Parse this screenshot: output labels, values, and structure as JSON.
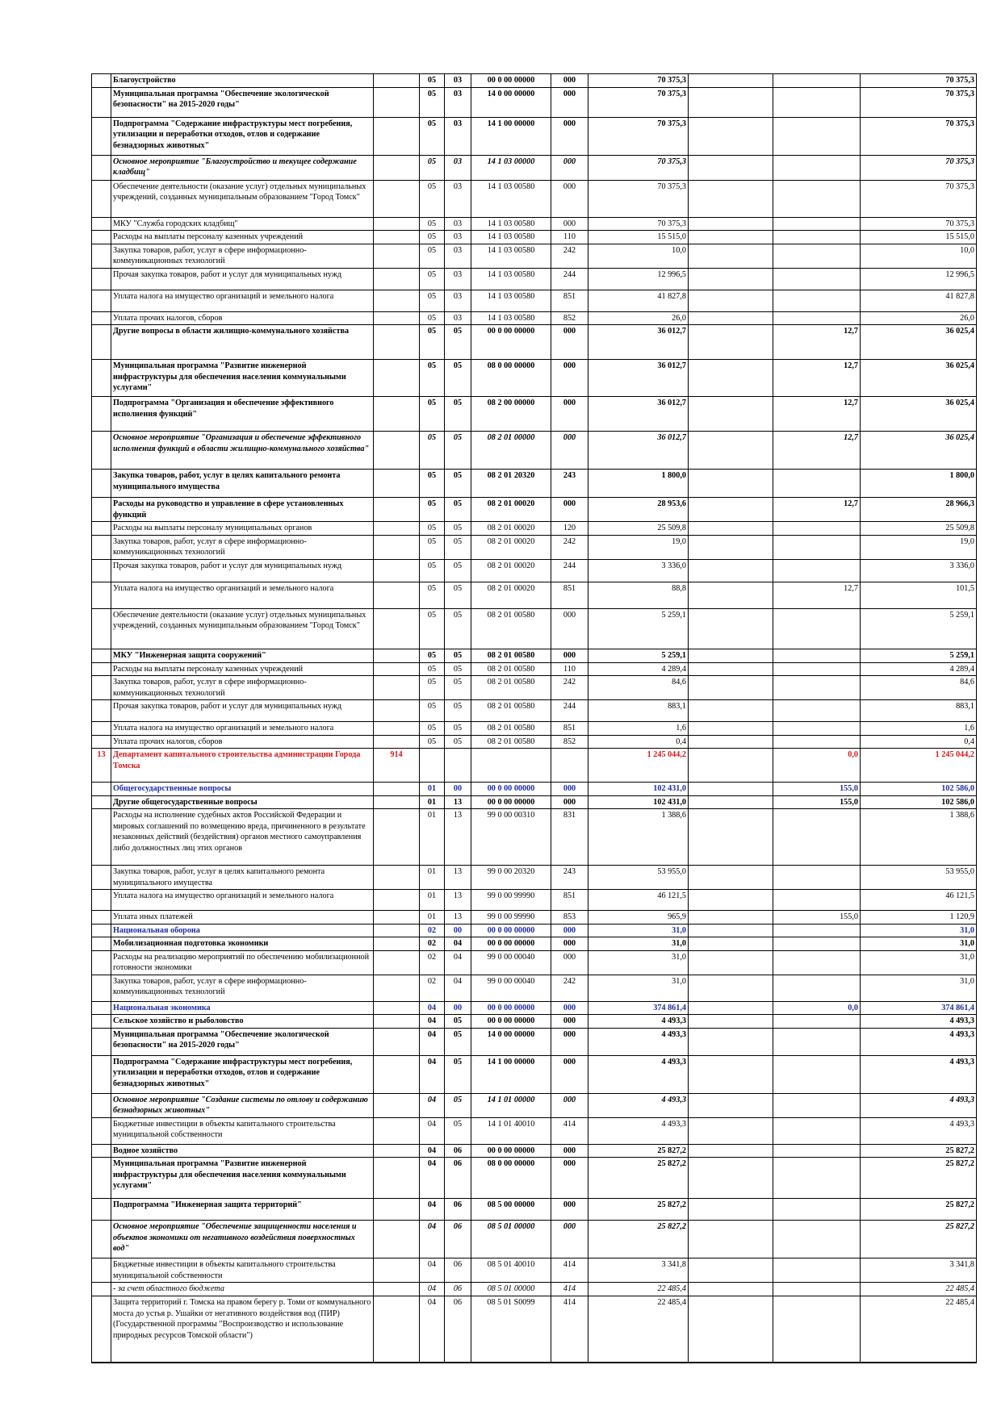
{
  "rows": [
    {
      "k": "bold",
      "n": "",
      "name": "Благоустройство",
      "dept": "",
      "rz": "05",
      "pr": "03",
      "csr": "00 0 00 00000",
      "vr": "000",
      "a": "70 375,3",
      "b": "",
      "c": "",
      "d": "70 375,3",
      "h": 16
    },
    {
      "k": "bold",
      "n": "",
      "name": "Муниципальная программа \"Обеспечение экологической безопасности\" на 2015-2020 годы\"",
      "dept": "",
      "rz": "05",
      "pr": "03",
      "csr": "14 0 00 00000",
      "vr": "000",
      "a": "70 375,3",
      "b": "",
      "c": "",
      "d": "70 375,3",
      "h": 37
    },
    {
      "k": "bold",
      "n": "",
      "name": "Подпрограмма \"Содержание инфраструктуры мест погребения, утилизации и переработки отходов, отлов и содержание безнадзорных животных\"",
      "dept": "",
      "rz": "05",
      "pr": "03",
      "csr": "14 1 00 00000",
      "vr": "000",
      "a": "70 375,3",
      "b": "",
      "c": "",
      "d": "70 375,3",
      "h": 47
    },
    {
      "k": "ital",
      "n": "",
      "name": "Основное мероприятие \"Благоустройство и текущее содержание кладбищ\"",
      "dept": "",
      "rz": "05",
      "pr": "03",
      "csr": "14 1 03 00000",
      "vr": "000",
      "a": "70 375,3",
      "b": "",
      "c": "",
      "d": "70 375,3",
      "h": 31
    },
    {
      "k": "plain",
      "n": "",
      "name": "Обеспечение деятельности (оказание услуг) отдельных муниципальных учреждений, созданных муниципальным образованием \"Город Томск\"",
      "dept": "",
      "rz": "05",
      "pr": "03",
      "csr": "14 1 03 00580",
      "vr": "000",
      "a": "70 375,3",
      "b": "",
      "c": "",
      "d": "70 375,3",
      "h": 46
    },
    {
      "k": "plain",
      "n": "",
      "name": "МКУ \"Служба городских кладбищ\"",
      "dept": "",
      "rz": "05",
      "pr": "03",
      "csr": "14 1 03 00580",
      "vr": "000",
      "a": "70 375,3",
      "b": "",
      "c": "",
      "d": "70 375,3",
      "h": 13
    },
    {
      "k": "sub",
      "n": "",
      "name": "Расходы на выплаты персоналу казенных учреждений",
      "dept": "",
      "rz": "05",
      "pr": "03",
      "csr": "14 1 03 00580",
      "vr": "110",
      "a": "15 515,0",
      "b": "",
      "c": "",
      "d": "15 515,0",
      "h": 13
    },
    {
      "k": "sub",
      "n": "",
      "name": "Закупка товаров, работ, услуг в сфере информационно-коммуникационных технологий",
      "dept": "",
      "rz": "05",
      "pr": "03",
      "csr": "14 1 03 00580",
      "vr": "242",
      "a": "10,0",
      "b": "",
      "c": "",
      "d": "10,0",
      "h": 30
    },
    {
      "k": "sub",
      "n": "",
      "name": "Прочая закупка товаров, работ и услуг для муниципальных нужд",
      "dept": "",
      "rz": "05",
      "pr": "03",
      "csr": "14 1 03 00580",
      "vr": "244",
      "a": "12 996,5",
      "b": "",
      "c": "",
      "d": "12 996,5",
      "h": 27
    },
    {
      "k": "sub",
      "n": "",
      "name": "Уплата налога на имущество организаций и земельного налога",
      "dept": "",
      "rz": "05",
      "pr": "03",
      "csr": "14 1 03 00580",
      "vr": "851",
      "a": "41 827,8",
      "b": "",
      "c": "",
      "d": "41 827,8",
      "h": 27
    },
    {
      "k": "sub",
      "n": "",
      "name": "Уплата прочих налогов, сборов",
      "dept": "",
      "rz": "05",
      "pr": "03",
      "csr": "14 1 03 00580",
      "vr": "852",
      "a": "26,0",
      "b": "",
      "c": "",
      "d": "26,0",
      "h": 13
    },
    {
      "k": "bold",
      "n": "",
      "name": "Другие вопросы в области жилищно-коммунального хозяйства",
      "dept": "",
      "rz": "05",
      "pr": "05",
      "csr": "00 0 00 00000",
      "vr": "000",
      "a": "36 012,7",
      "b": "",
      "c": "12,7",
      "d": "36 025,4",
      "h": 43
    },
    {
      "k": "bold",
      "n": "",
      "name": "Муниципальная программа \"Развитие инженерной инфраструктуры для обеспечения населения коммунальными услугами\"",
      "dept": "",
      "rz": "05",
      "pr": "05",
      "csr": "08 0 00 00000",
      "vr": "000",
      "a": "36 012,7",
      "b": "",
      "c": "12,7",
      "d": "36 025,4",
      "h": 46
    },
    {
      "k": "bold",
      "n": "",
      "name": "Подпрограмма \"Организация и обеспечение эффективного исполнения функций\"",
      "dept": "",
      "rz": "05",
      "pr": "05",
      "csr": "08 2 00 00000",
      "vr": "000",
      "a": "36 012,7",
      "b": "",
      "c": "12,7",
      "d": "36 025,4",
      "h": 43
    },
    {
      "k": "ital",
      "n": "",
      "name": "Основное мероприятие \"Организация и обеспечение эффективного исполнения функций в области жилищно-коммунального хозяйства\"",
      "dept": "",
      "rz": "05",
      "pr": "05",
      "csr": "08 2 01 00000",
      "vr": "000",
      "a": "36 012,7",
      "b": "",
      "c": "12,7",
      "d": "36 025,4",
      "h": 47
    },
    {
      "k": "bold",
      "n": "",
      "name": "Закупка товаров, работ, услуг в целях капитального ремонта муниципального имущества",
      "dept": "",
      "rz": "05",
      "pr": "05",
      "csr": "08 2 01 20320",
      "vr": "243",
      "a": "1 800,0",
      "b": "",
      "c": "",
      "d": "1 800,0",
      "h": 35
    },
    {
      "k": "bold",
      "n": "",
      "name": "Расходы на руководство и управление в сфере установленных функций",
      "dept": "",
      "rz": "05",
      "pr": "05",
      "csr": "08 2 01 00020",
      "vr": "000",
      "a": "28 953,6",
      "b": "",
      "c": "12,7",
      "d": "28 966,3",
      "h": 29
    },
    {
      "k": "sub",
      "n": "",
      "name": "Расходы на выплаты персоналу муниципальных органов",
      "dept": "",
      "rz": "05",
      "pr": "05",
      "csr": "08 2 01 00020",
      "vr": "120",
      "a": "25 509,8",
      "b": "",
      "c": "",
      "d": "25 509,8",
      "h": 12
    },
    {
      "k": "sub",
      "n": "",
      "name": "Закупка товаров, работ, услуг в сфере информационно-коммуникационных технологий",
      "dept": "",
      "rz": "05",
      "pr": "05",
      "csr": "08 2 01 00020",
      "vr": "242",
      "a": "19,0",
      "b": "",
      "c": "",
      "d": "19,0",
      "h": 26
    },
    {
      "k": "sub",
      "n": "",
      "name": "Прочая закупка товаров, работ и услуг для муниципальных нужд",
      "dept": "",
      "rz": "05",
      "pr": "05",
      "csr": "08 2 01 00020",
      "vr": "244",
      "a": "3 336,0",
      "b": "",
      "c": "",
      "d": "3 336,0",
      "h": 28
    },
    {
      "k": "plain",
      "n": "",
      "name": "Уплата налога на имущество организаций и земельного налога",
      "dept": "",
      "rz": "05",
      "pr": "05",
      "csr": "08 2 01 00020",
      "vr": "851",
      "a": "88,8",
      "b": "",
      "c": "12,7",
      "d": "101,5",
      "h": 33
    },
    {
      "k": "plain",
      "n": "",
      "name": "Обеспечение деятельности (оказание услуг) отдельных муниципальных учреждений, созданных муниципальным образованием \"Город Томск\"",
      "dept": "",
      "rz": "05",
      "pr": "05",
      "csr": "08 2 01 00580",
      "vr": "000",
      "a": "5 259,1",
      "b": "",
      "c": "",
      "d": "5 259,1",
      "h": 50
    },
    {
      "k": "bold",
      "n": "",
      "name": "МКУ \"Инженерная защита сооружений\"",
      "dept": "",
      "rz": "05",
      "pr": "05",
      "csr": "08 2 01 00580",
      "vr": "000",
      "a": "5 259,1",
      "b": "",
      "c": "",
      "d": "5 259,1",
      "h": 17
    },
    {
      "k": "sub",
      "n": "",
      "name": "Расходы на выплаты персоналу казенных учреждений",
      "dept": "",
      "rz": "05",
      "pr": "05",
      "csr": "08 2 01 00580",
      "vr": "110",
      "a": "4 289,4",
      "b": "",
      "c": "",
      "d": "4 289,4",
      "h": 12
    },
    {
      "k": "sub",
      "n": "",
      "name": "Закупка товаров, работ, услуг в сфере информационно-коммуникационных технологий",
      "dept": "",
      "rz": "05",
      "pr": "05",
      "csr": "08 2 01 00580",
      "vr": "242",
      "a": "84,6",
      "b": "",
      "c": "",
      "d": "84,6",
      "h": 27
    },
    {
      "k": "sub",
      "n": "",
      "name": "Прочая закупка товаров, работ и услуг для муниципальных нужд",
      "dept": "",
      "rz": "05",
      "pr": "05",
      "csr": "08 2 01 00580",
      "vr": "244",
      "a": "883,1",
      "b": "",
      "c": "",
      "d": "883,1",
      "h": 27
    },
    {
      "k": "plain",
      "n": "",
      "name": "Уплата налога на имущество организаций и земельного налога",
      "dept": "",
      "rz": "05",
      "pr": "05",
      "csr": "08 2 01 00580",
      "vr": "851",
      "a": "1,6",
      "b": "",
      "c": "",
      "d": "1,6",
      "h": 13
    },
    {
      "k": "sub",
      "n": "",
      "name": "Уплата прочих налогов, сборов",
      "dept": "",
      "rz": "05",
      "pr": "05",
      "csr": "08 2 01 00580",
      "vr": "852",
      "a": "0,4",
      "b": "",
      "c": "",
      "d": "0,4",
      "h": 12
    },
    {
      "k": "red",
      "n": "13",
      "name": "Департамент капитального строительства администрации Города Томска",
      "dept": "914",
      "rz": "",
      "pr": "",
      "csr": "",
      "vr": "",
      "a": "1 245 044,2",
      "b": "",
      "c": "0,0",
      "d": "1 245 044,2",
      "h": 42
    },
    {
      "k": "blue",
      "n": "",
      "name": "Общегосударственные вопросы",
      "dept": "",
      "rz": "01",
      "pr": "00",
      "csr": "00 0 00 00000",
      "vr": "000",
      "a": "102 431,0",
      "b": "",
      "c": "155,0",
      "d": "102 586,0",
      "h": 16
    },
    {
      "k": "bold",
      "n": "",
      "name": "Другие общегосударственные вопросы",
      "dept": "",
      "rz": "01",
      "pr": "13",
      "csr": "00 0 00 00000",
      "vr": "000",
      "a": "102 431,0",
      "b": "",
      "c": "155,0",
      "d": "102 586,0",
      "h": 13
    },
    {
      "k": "plain",
      "n": "",
      "name": "Расходы на исполнение судебных актов Российской Федерации и мировых соглашений по возмещению вреда, причиненного в результате незаконных действий (бездействия) органов местного самоуправления либо должностных лиц этих органов",
      "dept": "",
      "rz": "01",
      "pr": "13",
      "csr": "99 0 00 00310",
      "vr": "831",
      "a": "1 388,6",
      "b": "",
      "c": "",
      "d": "1 388,6",
      "h": 70
    },
    {
      "k": "plain",
      "n": "",
      "name": "Закупка товаров, работ, услуг в целях капитального ремонта муниципального имущества",
      "dept": "",
      "rz": "01",
      "pr": "13",
      "csr": "99 0 00 20320",
      "vr": "243",
      "a": "53 955,0",
      "b": "",
      "c": "",
      "d": "53 955,0",
      "h": 29
    },
    {
      "k": "sub",
      "n": "",
      "name": "Уплата налога на имущество организаций и земельного налога",
      "dept": "",
      "rz": "01",
      "pr": "13",
      "csr": "99 0 00 99990",
      "vr": "851",
      "a": "46 121,5",
      "b": "",
      "c": "",
      "d": "46 121,5",
      "h": 26
    },
    {
      "k": "sub",
      "n": "",
      "name": "Уплата иных платежей",
      "dept": "",
      "rz": "01",
      "pr": "13",
      "csr": "99 0 00 99990",
      "vr": "853",
      "a": "965,9",
      "b": "",
      "c": "155,0",
      "d": "1 120,9",
      "h": 12
    },
    {
      "k": "blue",
      "n": "",
      "name": "Национальная оборона",
      "dept": "",
      "rz": "02",
      "pr": "00",
      "csr": "00 0 00 00000",
      "vr": "000",
      "a": "31,0",
      "b": "",
      "c": "",
      "d": "31,0",
      "h": 14
    },
    {
      "k": "bold",
      "n": "",
      "name": "Мобилизационная подготовка экономики",
      "dept": "",
      "rz": "02",
      "pr": "04",
      "csr": "00 0 00 00000",
      "vr": "000",
      "a": "31,0",
      "b": "",
      "c": "",
      "d": "31,0",
      "h": 13
    },
    {
      "k": "plain",
      "n": "",
      "name": "Расходы на реализацию мероприятий по обеспечению мобилизационной готовности экономики",
      "dept": "",
      "rz": "02",
      "pr": "04",
      "csr": "99 0 00 00040",
      "vr": "000",
      "a": "31,0",
      "b": "",
      "c": "",
      "d": "31,0",
      "h": 28
    },
    {
      "k": "sub",
      "n": "",
      "name": "Закупка товаров, работ, услуг в сфере информационно-коммуникационных технологий",
      "dept": "",
      "rz": "02",
      "pr": "04",
      "csr": "99 0 00 00040",
      "vr": "242",
      "a": "31,0",
      "b": "",
      "c": "",
      "d": "31,0",
      "h": 33
    },
    {
      "k": "blue",
      "n": "",
      "name": "Национальная экономика",
      "dept": "",
      "rz": "04",
      "pr": "00",
      "csr": "00 0 00 00000",
      "vr": "000",
      "a": "374 861,4",
      "b": "",
      "c": "0,0",
      "d": "374 861,4",
      "h": 14
    },
    {
      "k": "bold",
      "n": "",
      "name": "Сельское хозяйство и рыболовство",
      "dept": "",
      "rz": "04",
      "pr": "05",
      "csr": "00 0 00 00000",
      "vr": "000",
      "a": "4 493,3",
      "b": "",
      "c": "",
      "d": "4 493,3",
      "h": 13
    },
    {
      "k": "bold",
      "n": "",
      "name": "Муниципальная программа \"Обеспечение экологической безопасности\" на 2015-2020 годы\"",
      "dept": "",
      "rz": "04",
      "pr": "05",
      "csr": "14 0 00 00000",
      "vr": "000",
      "a": "4 493,3",
      "b": "",
      "c": "",
      "d": "4 493,3",
      "h": 34
    },
    {
      "k": "bold",
      "n": "",
      "name": "Подпрограмма \"Содержание инфраструктуры мест погребения, утилизации и переработки отходов, отлов и содержание безнадзорных животных\"",
      "dept": "",
      "rz": "04",
      "pr": "05",
      "csr": "14 1 00 00000",
      "vr": "000",
      "a": "4 493,3",
      "b": "",
      "c": "",
      "d": "4 493,3",
      "h": 47
    },
    {
      "k": "ital",
      "n": "",
      "name": "Основное мероприятие \"Создание системы по отлову и содержанию безнадзорных животных\"",
      "dept": "",
      "rz": "04",
      "pr": "05",
      "csr": "14 1 01 00000",
      "vr": "000",
      "a": "4 493,3",
      "b": "",
      "c": "",
      "d": "4 493,3",
      "h": 30
    },
    {
      "k": "plain",
      "n": "",
      "name": "Бюджетные инвестиции в объекты капитального строительства муниципальной собственности",
      "dept": "",
      "rz": "04",
      "pr": "05",
      "csr": "14 1 01 40010",
      "vr": "414",
      "a": "4 493,3",
      "b": "",
      "c": "",
      "d": "4 493,3",
      "h": 33
    },
    {
      "k": "bold",
      "n": "",
      "name": "Водное хозяйство",
      "dept": "",
      "rz": "04",
      "pr": "06",
      "csr": "00 0 00 00000",
      "vr": "000",
      "a": "25 827,2",
      "b": "",
      "c": "",
      "d": "25 827,2",
      "h": 12
    },
    {
      "k": "bold",
      "n": "",
      "name": "Муниципальная программа \"Развитие инженерной инфраструктуры для обеспечения населения коммунальными услугами\"",
      "dept": "",
      "rz": "04",
      "pr": "06",
      "csr": "08 0 00 00000",
      "vr": "000",
      "a": "25 827,2",
      "b": "",
      "c": "",
      "d": "25 827,2",
      "h": 51
    },
    {
      "k": "bold",
      "n": "",
      "name": "Подпрограмма \"Инженерная защита территорий\"",
      "dept": "",
      "rz": "04",
      "pr": "06",
      "csr": "08 5 00 00000",
      "vr": "000",
      "a": "25 827,2",
      "b": "",
      "c": "",
      "d": "25 827,2",
      "h": 27
    },
    {
      "k": "ital",
      "n": "",
      "name": "Основное мероприятие  \"Обеспечение защищенности населения и объектов экономики от негативного воздействия поверхностных вод\"",
      "dept": "",
      "rz": "04",
      "pr": "06",
      "csr": "08 5 01 00000",
      "vr": "000",
      "a": "25 827,2",
      "b": "",
      "c": "",
      "d": "25 827,2",
      "h": 47
    },
    {
      "k": "plain",
      "n": "",
      "name": "Бюджетные инвестиции в объекты капитального строительства муниципальной собственности",
      "dept": "",
      "rz": "04",
      "pr": "06",
      "csr": "08 5 01 40010",
      "vr": "414",
      "a": "3 341,8",
      "b": "",
      "c": "",
      "d": "3 341,8",
      "h": 28
    },
    {
      "k": "italplain",
      "n": "",
      "name": "- за счет областного бюджета",
      "dept": "",
      "rz": "04",
      "pr": "06",
      "csr": "08 5 01 00000",
      "vr": "414",
      "a": "22 485,4",
      "b": "",
      "c": "",
      "d": "22 485,4",
      "h": 17
    },
    {
      "k": "plain",
      "n": "",
      "name": "Защита территорий г. Томска на правом берегу р. Томи от коммунального моста до устья р. Ушайки от негативного воздействия вод (ПИР) (Государственной программы \"Воспроизводство и использование природных ресурсов Томской области\")",
      "dept": "",
      "rz": "04",
      "pr": "06",
      "csr": "08 5 01 S0099",
      "vr": "414",
      "a": "22 485,4",
      "b": "",
      "c": "",
      "d": "22 485,4",
      "h": 82
    }
  ]
}
